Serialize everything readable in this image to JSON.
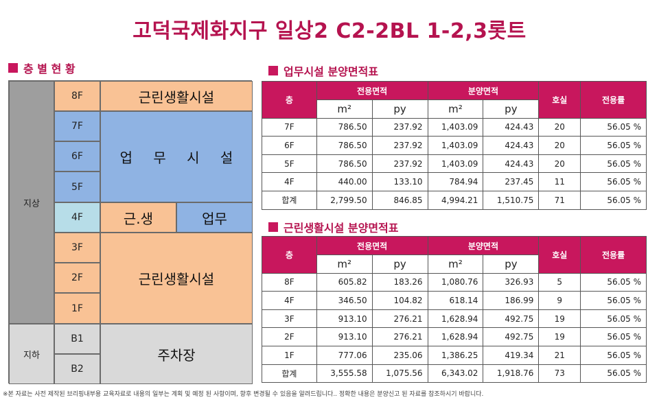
{
  "title": "고덕국제화지구 일상2 C2-2BL 1-2,3롯트",
  "floor_status": {
    "heading": "층 별 현 황",
    "zones": {
      "above": "지상",
      "below": "지하"
    },
    "floors": {
      "f8": "8F",
      "f7": "7F",
      "f6": "6F",
      "f5": "5F",
      "f4": "4F",
      "f3": "3F",
      "f2": "2F",
      "f1": "1F",
      "b1": "B1",
      "b2": "B2"
    },
    "uses": {
      "neighborhood_top": "근린생활시설",
      "office": "업 무 시 설",
      "neighborhood_short": "근.생",
      "office_short": "업무",
      "neighborhood_low": "근린생활시설",
      "parking": "주차장"
    },
    "colors": {
      "ground": "#9e9e9e",
      "underground": "#d9d9d9",
      "neighborhood": "#f9c295",
      "office": "#8fb3e3",
      "mixed_floor": "#b7dde8"
    }
  },
  "office_table": {
    "heading": "업무시설 분양면적표",
    "headers": {
      "floor": "층",
      "exclusive": "전용면적",
      "sale": "분양면적",
      "units": "호실",
      "ratio": "전용률",
      "m2": "m²",
      "py": "py"
    },
    "rows": [
      {
        "floor": "7F",
        "ex_m2": "786.50",
        "ex_py": "237.92",
        "sale_m2": "1,403.09",
        "sale_py": "424.43",
        "units": "20",
        "ratio": "56.05 %"
      },
      {
        "floor": "6F",
        "ex_m2": "786.50",
        "ex_py": "237.92",
        "sale_m2": "1,403.09",
        "sale_py": "424.43",
        "units": "20",
        "ratio": "56.05 %"
      },
      {
        "floor": "5F",
        "ex_m2": "786.50",
        "ex_py": "237.92",
        "sale_m2": "1,403.09",
        "sale_py": "424.43",
        "units": "20",
        "ratio": "56.05 %"
      },
      {
        "floor": "4F",
        "ex_m2": "440.00",
        "ex_py": "133.10",
        "sale_m2": "784.94",
        "sale_py": "237.45",
        "units": "11",
        "ratio": "56.05 %"
      },
      {
        "floor": "합계",
        "ex_m2": "2,799.50",
        "ex_py": "846.85",
        "sale_m2": "4,994.21",
        "sale_py": "1,510.75",
        "units": "71",
        "ratio": "56.05 %"
      }
    ]
  },
  "retail_table": {
    "heading": "근린생활시설 분양면적표",
    "headers": {
      "floor": "층",
      "exclusive": "전용면적",
      "sale": "분양면적",
      "units": "호실",
      "ratio": "전용률",
      "m2": "m²",
      "py": "py"
    },
    "rows": [
      {
        "floor": "8F",
        "ex_m2": "605.82",
        "ex_py": "183.26",
        "sale_m2": "1,080.76",
        "sale_py": "326.93",
        "units": "5",
        "ratio": "56.05 %"
      },
      {
        "floor": "4F",
        "ex_m2": "346.50",
        "ex_py": "104.82",
        "sale_m2": "618.14",
        "sale_py": "186.99",
        "units": "9",
        "ratio": "56.05 %"
      },
      {
        "floor": "3F",
        "ex_m2": "913.10",
        "ex_py": "276.21",
        "sale_m2": "1,628.94",
        "sale_py": "492.75",
        "units": "19",
        "ratio": "56.05 %"
      },
      {
        "floor": "2F",
        "ex_m2": "913.10",
        "ex_py": "276.21",
        "sale_m2": "1,628.94",
        "sale_py": "492.75",
        "units": "19",
        "ratio": "56.05 %"
      },
      {
        "floor": "1F",
        "ex_m2": "777.06",
        "ex_py": "235.06",
        "sale_m2": "1,386.25",
        "sale_py": "419.34",
        "units": "21",
        "ratio": "56.05 %"
      },
      {
        "floor": "합계",
        "ex_m2": "3,555.58",
        "ex_py": "1,075.56",
        "sale_m2": "6,343.02",
        "sale_py": "1,918.76",
        "units": "73",
        "ratio": "56.05 %"
      }
    ]
  },
  "footnote": "※본 자료는 사전 제작된 브리핑내부용 교육자료로 내용의 일부는 계획 및 예정 된 사항이며, 향후 변경될 수 있음을 알려드립니다.. 정확한 내용은 분양신고 된 자료를 참조하시기 바랍니다."
}
